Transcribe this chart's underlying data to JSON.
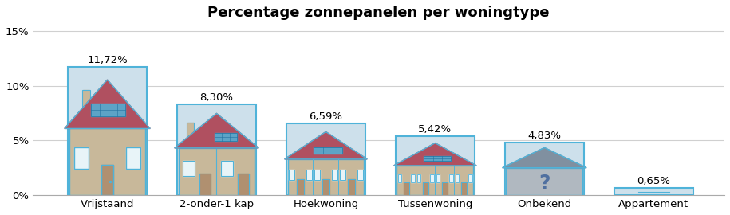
{
  "title": "Percentage zonnepanelen per woningtype",
  "categories": [
    "Vrijstaand",
    "2-onder-1 kap",
    "Hoekwoning",
    "Tussenwoning",
    "Onbekend",
    "Appartement"
  ],
  "values": [
    11.72,
    8.3,
    6.59,
    5.42,
    4.83,
    0.65
  ],
  "labels": [
    "11,72%",
    "8,30%",
    "6,59%",
    "5,42%",
    "4,83%",
    "0,65%"
  ],
  "bar_color": "#cde0eb",
  "bar_edge_color": "#4fb3d9",
  "bar_edge_width": 1.5,
  "ylim": [
    0,
    15.5
  ],
  "yticks": [
    0,
    5,
    10,
    15
  ],
  "ytick_labels": [
    "0%",
    "5%",
    "10%",
    "15%"
  ],
  "title_fontsize": 13,
  "label_fontsize": 9.5,
  "tick_fontsize": 9.5,
  "background_color": "#ffffff",
  "grid_color": "#d0d0d0",
  "house_wall_color": "#c8b89a",
  "house_roof_color": "#b05060",
  "house_blue_outline": "#4fb3d9",
  "house_door_color": "#b09070",
  "house_window_color": "#e8f4f8",
  "house_solar_color": "#4fb3d9",
  "house_chimney_color": "#c8b89a"
}
